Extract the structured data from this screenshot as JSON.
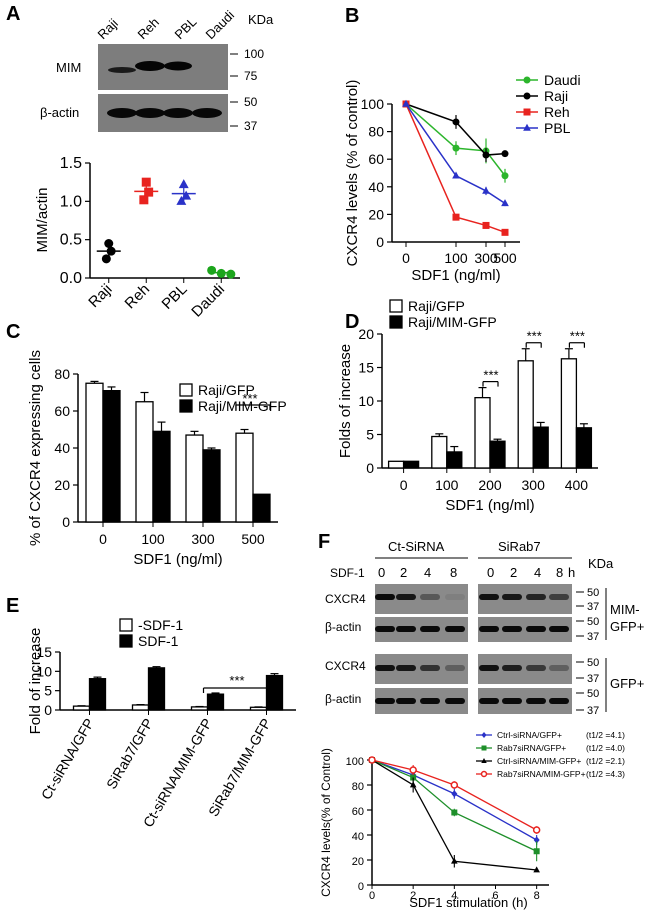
{
  "panels": {
    "A": "A",
    "B": "B",
    "C": "C",
    "D": "D",
    "E": "E",
    "F": "F"
  },
  "blotA": {
    "lanes": [
      "Raji",
      "Reh",
      "PBL",
      "Daudi"
    ],
    "kda": "KDa",
    "rows": [
      "MIM",
      "β-actin"
    ],
    "mw": [
      "100",
      "75",
      "50",
      "37"
    ]
  },
  "blotF": {
    "groups": [
      "Ct-SiRNA",
      "SiRab7"
    ],
    "sdf": "SDF-1",
    "times": [
      "0",
      "2",
      "4",
      "8"
    ],
    "hour": "h",
    "kda": "KDa",
    "rows": [
      "CXCR4",
      "β-actin",
      "CXCR4",
      "β-actin"
    ],
    "mw": [
      "50",
      "37",
      "50",
      "37",
      "50",
      "37",
      "50",
      "37"
    ],
    "side": [
      "MIM-",
      "GFP+",
      "GFP+"
    ]
  },
  "chart_data": [
    {
      "id": "A",
      "type": "scatter",
      "ylabel": "MIM/actin",
      "categories": [
        "Raji",
        "Reh",
        "PBL",
        "Daudi"
      ],
      "colors": [
        "#000000",
        "#e8231f",
        "#2a32c8",
        "#1ca51c"
      ],
      "markers": [
        "circle",
        "square",
        "triangle",
        "circle"
      ],
      "points": [
        [
          0.25,
          0.45,
          0.35
        ],
        [
          1.02,
          1.25,
          1.12
        ],
        [
          1.0,
          1.22,
          1.07
        ],
        [
          0.1,
          0.06,
          0.05
        ]
      ],
      "means": [
        0.35,
        1.13,
        1.1,
        0.07
      ],
      "ylim": [
        0,
        1.5
      ],
      "yticks": [
        "0.0",
        "0.5",
        "1.0",
        "1.5"
      ]
    },
    {
      "id": "B",
      "type": "line",
      "xlabel": "SDF1 (ng/ml)",
      "ylabel": "CXCR4 levels (% of control)",
      "x": [
        "0",
        "100",
        "300",
        "500"
      ],
      "ylim": [
        0,
        100
      ],
      "yticks": [
        "0",
        "20",
        "40",
        "60",
        "80",
        "100"
      ],
      "series": [
        {
          "name": "Daudi",
          "color": "#2cb52c",
          "marker": "circle",
          "values": [
            100,
            68,
            66,
            48
          ],
          "err": [
            0,
            5,
            9,
            5
          ]
        },
        {
          "name": "Raji",
          "color": "#000000",
          "marker": "circle",
          "values": [
            100,
            87,
            63,
            64
          ],
          "err": [
            0,
            5,
            5,
            0
          ]
        },
        {
          "name": "Reh",
          "color": "#e8231f",
          "marker": "square",
          "values": [
            100,
            18,
            12,
            7
          ],
          "err": [
            0,
            2,
            1,
            1
          ]
        },
        {
          "name": "PBL",
          "color": "#2a32c8",
          "marker": "triangle",
          "values": [
            100,
            48,
            37,
            28
          ],
          "err": [
            0,
            2,
            3,
            2
          ]
        }
      ]
    },
    {
      "id": "C",
      "type": "bar",
      "xlabel": "SDF1 (ng/ml)",
      "ylabel": "% of CXCR4 expressing cells",
      "categories": [
        "0",
        "100",
        "300",
        "500"
      ],
      "ylim": [
        0,
        80
      ],
      "yticks": [
        "0",
        "20",
        "40",
        "60",
        "80"
      ],
      "series": [
        {
          "name": "Raji/GFP",
          "fill": "#ffffff",
          "values": [
            75,
            65,
            47,
            48
          ],
          "err": [
            1,
            5,
            2,
            2
          ]
        },
        {
          "name": "Raji/MIM-GFP",
          "fill": "#000000",
          "values": [
            71,
            49,
            39,
            15
          ],
          "err": [
            2,
            5,
            1,
            0
          ]
        }
      ],
      "sig": [
        {
          "cat": 3,
          "text": "***"
        }
      ]
    },
    {
      "id": "D",
      "type": "bar",
      "xlabel": "SDF1 (ng/ml)",
      "ylabel": "Folds of increase",
      "categories": [
        "0",
        "100",
        "200",
        "300",
        "400"
      ],
      "ylim": [
        0,
        20
      ],
      "yticks": [
        "0",
        "5",
        "10",
        "15",
        "20"
      ],
      "series": [
        {
          "name": "Raji/GFP",
          "fill": "#ffffff",
          "values": [
            1,
            4.7,
            10.5,
            16,
            16.3
          ],
          "err": [
            0,
            0.4,
            1.5,
            1.8,
            1.5
          ]
        },
        {
          "name": "Raji/MIM-GFP",
          "fill": "#000000",
          "values": [
            1,
            2.4,
            4,
            6.1,
            6
          ],
          "err": [
            0,
            0.8,
            0.3,
            0.7,
            0.6
          ]
        }
      ],
      "sig": [
        {
          "cat": 2,
          "text": "***"
        },
        {
          "cat": 3,
          "text": "***"
        },
        {
          "cat": 4,
          "text": "***"
        }
      ]
    },
    {
      "id": "E",
      "type": "bar",
      "ylabel": "Fold of increase",
      "categories": [
        "Ct-siRNA/GFP",
        "SiRab7/GFP",
        "Ct-siRNA/MIM-GFP",
        "SiRab7/MIM-GFP"
      ],
      "ylim": [
        0,
        15
      ],
      "yticks": [
        "0",
        "5",
        "10",
        "15"
      ],
      "series": [
        {
          "name": "-SDF-1",
          "fill": "#ffffff",
          "values": [
            1,
            1.3,
            0.8,
            0.7
          ],
          "err": [
            0.1,
            0.1,
            0.1,
            0.1
          ]
        },
        {
          "name": "SDF-1",
          "fill": "#000000",
          "values": [
            8.1,
            10.9,
            4.1,
            8.9
          ],
          "err": [
            0.4,
            0.3,
            0.3,
            0.5
          ]
        }
      ],
      "sig": [
        {
          "from": 2,
          "to": 3,
          "text": "***"
        }
      ]
    },
    {
      "id": "F",
      "type": "line",
      "xlabel": "SDF1 stimulation (h)",
      "ylabel": "CXCR4 levels(% of Control)",
      "x": [
        0,
        2,
        4,
        6,
        8
      ],
      "xlim": [
        0,
        8.6
      ],
      "ylim": [
        0,
        100
      ],
      "yticks": [
        "0",
        "20",
        "40",
        "60",
        "80",
        "100"
      ],
      "series": [
        {
          "name": "Ctrl-siRNA/GFP+",
          "t_half": "(t1/2 =4.1)",
          "color": "#2a32c8",
          "marker": "diamond",
          "x": [
            0,
            2,
            4,
            8
          ],
          "values": [
            100,
            88,
            73,
            36
          ],
          "err": [
            2,
            4,
            4,
            4
          ]
        },
        {
          "name": "Rab7siRNA/GFP+",
          "t_half": "(t1/2 =4.0)",
          "color": "#1e8f2a",
          "marker": "square",
          "x": [
            0,
            2,
            4,
            8
          ],
          "values": [
            100,
            86,
            58,
            27
          ],
          "err": [
            2,
            4,
            3,
            8
          ]
        },
        {
          "name": "Ctrl-siRNA/MIM-GFP+",
          "t_half": "(t1/2 =2.1)",
          "color": "#000000",
          "marker": "triangle",
          "x": [
            0,
            2,
            4,
            8
          ],
          "values": [
            100,
            80,
            19,
            12
          ],
          "err": [
            2,
            6,
            5,
            1
          ]
        },
        {
          "name": "Rab7siRNA/MIM-GFP+",
          "t_half": "(t1/2 =4.3)",
          "color": "#e8231f",
          "marker": "circle-open",
          "x": [
            0,
            2,
            4,
            8
          ],
          "values": [
            100,
            92,
            80,
            44
          ],
          "err": [
            2,
            4,
            3,
            3
          ]
        }
      ]
    }
  ]
}
